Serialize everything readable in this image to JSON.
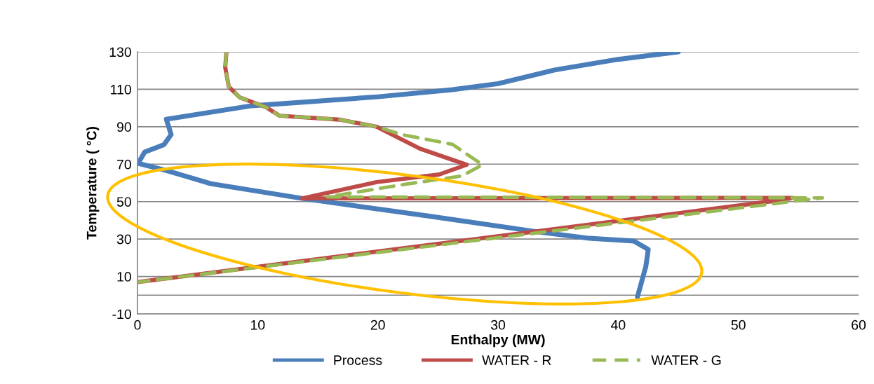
{
  "chart_data": {
    "type": "line",
    "xlabel": "Enthalpy (MW)",
    "ylabel": "Temperature ( °C)",
    "xlim": [
      0,
      60
    ],
    "xticks": [
      0,
      10,
      20,
      30,
      40,
      50,
      60
    ],
    "ylim": [
      -10,
      130
    ],
    "yticks": [
      -10,
      10,
      30,
      50,
      70,
      90,
      110,
      130
    ],
    "grid": "y",
    "legend": "bottom",
    "line_style": "solid",
    "marker": "none",
    "ref_lines": [
      {
        "axis": "y",
        "value": 0,
        "color": "#868686"
      }
    ],
    "series": [
      {
        "name": "Process",
        "color": "#4a7ebb",
        "x": [
          41.6,
          42.3,
          42.5,
          41.3,
          37.6,
          32.9,
          24.1,
          13.7,
          6.1,
          2.2,
          0.05,
          0.6,
          2.2,
          2.8,
          2.4,
          9.5,
          20,
          26.2,
          30,
          34.7,
          40,
          45
        ],
        "values": [
          -1,
          15.4,
          24.4,
          28.9,
          30.4,
          34.2,
          42.4,
          51.7,
          59.6,
          67,
          70.4,
          76.5,
          80.4,
          85.8,
          94,
          101.2,
          106,
          109.8,
          113,
          120.3,
          126,
          130
        ]
      },
      {
        "name": "WATER - R",
        "color": "#be4b48",
        "x": [
          7.4,
          7.3,
          7.6,
          8.5,
          10.7,
          11.8,
          16.8,
          19.9,
          23.5,
          27.4,
          25.1,
          19.9,
          13.7,
          54.5,
          53.8,
          0
        ],
        "values": [
          130,
          121.8,
          111.3,
          105.7,
          100.4,
          95.9,
          93.8,
          90,
          78.3,
          69.7,
          64.5,
          60.4,
          51.7,
          52,
          51,
          7
        ]
      },
      {
        "name": "WATER - G",
        "color": "#98b954",
        "line_style": "dashed",
        "x": [
          7.4,
          7.3,
          7.6,
          8.5,
          10.7,
          11.8,
          16.8,
          19.9,
          22,
          26.2,
          28.7,
          27,
          22,
          15.8,
          57,
          55,
          0
        ],
        "values": [
          130,
          121.8,
          111.3,
          105.7,
          100.4,
          95.9,
          93.8,
          90,
          85.8,
          80.6,
          69.7,
          63.7,
          59,
          52.5,
          52,
          50.5,
          7
        ]
      }
    ]
  }
}
